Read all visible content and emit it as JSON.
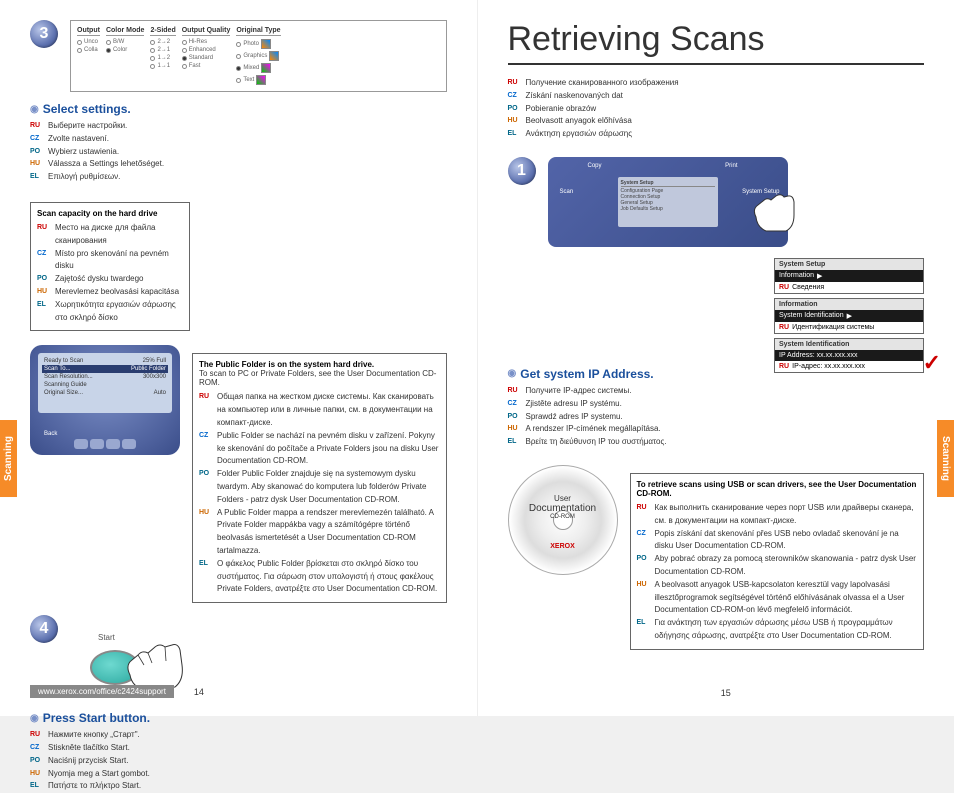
{
  "page_left": {
    "step3": "3",
    "step4": "4",
    "select_settings_heading": "Select settings.",
    "select_settings_ml": {
      "RU": "Выберите настройки.",
      "CZ": "Zvolte nastavení.",
      "PO": "Wybierz ustawienia.",
      "HU": "Válassza a Settings lehetőséget.",
      "EL": "Επιλογή ρυθμίσεων."
    },
    "panel": {
      "cols": [
        {
          "header": "Output",
          "opts": [
            "Unco",
            "Colla"
          ]
        },
        {
          "header": "Color Mode",
          "opts": [
            "B/W",
            "Color"
          ]
        },
        {
          "header": "2-Sided",
          "opts": [
            "2→2",
            "2→1",
            "1→2",
            "1→1"
          ]
        },
        {
          "header": "Output Quality",
          "opts": [
            "Hi-Res",
            "Enhanced",
            "Standard",
            "Fast"
          ]
        },
        {
          "header": "Original Type",
          "opts": [
            "Photo",
            "Graphics",
            "Mixed",
            "Text"
          ]
        }
      ]
    },
    "scan_capacity": {
      "heading": "Scan capacity on the hard drive",
      "ml": {
        "RU": "Место на диске для файла сканирования",
        "CZ": "Místo pro skenování na pevném disku",
        "PO": "Zajętość dysku twardego",
        "HU": "Merevlemez beolvasási kapacitása",
        "EL": "Χωρητικότητα εργασιών σάρωσης στο σκληρό δίσκο"
      }
    },
    "lcd": {
      "ready": "Ready to Scan",
      "pct": "25% Full",
      "rows": [
        [
          "Scan To...",
          "Public Folder"
        ],
        [
          "Scan Resolution...",
          "300x300"
        ],
        [
          "Scanning Guide",
          ""
        ],
        [
          "Original Size...",
          "Auto"
        ]
      ],
      "back": "Back"
    },
    "public_folder": {
      "heading": "The Public Folder is on the system hard drive.",
      "sub": "To scan to PC or Private Folders, see the User Documentation CD-ROM.",
      "ml": {
        "RU": "Общая папка на жестком диске системы. Как сканировать на компьютер или в личные папки, см. в документации на компакт-диске.",
        "CZ": "Public Folder se nachází na pevném disku v zařízení. Pokyny ke skenování do počítače a Private Folders jsou na disku User Documentation CD-ROM.",
        "PO": "Folder Public Folder znajduje się na systemowym dysku twardym. Aby skanować do komputera lub folderów Private Folders - patrz dysk User Documentation CD-ROM.",
        "HU": "A Public Folder mappa a rendszer merevlemezén található. A Private Folder mappákba vagy a számítógépre történő beolvasás ismertetését a User Documentation CD-ROM tartalmazza.",
        "EL": "Ο φάκελος Public Folder βρίσκεται στο σκληρό δίσκο του συστήματος. Για σάρωση στον υπολογιστή ή στους φακέλους Private Folders, ανατρέξτε στο User Documentation CD-ROM."
      }
    },
    "start_label": "Start",
    "press_start_heading": "Press Start button.",
    "press_start_ml": {
      "RU": "Нажмите кнопку „Старт\".",
      "CZ": "Stiskněte tlačítko Start.",
      "PO": "Naciśnij przycisk Start.",
      "HU": "Nyomja meg a Start gombot.",
      "EL": "Πατήστε το πλήκτρο Start."
    },
    "footer_url": "www.xerox.com/office/c2424support",
    "page_num": "14",
    "side_tab": "Scanning"
  },
  "page_right": {
    "title": "Retrieving Scans",
    "title_ml": {
      "RU": "Получение сканированного изображения",
      "CZ": "Získání naskenovaných dat",
      "PO": "Pobieranie obrazów",
      "HU": "Beolvasott anyagok előhívása",
      "EL": "Ανάκτηση εργασιών σάρωσης"
    },
    "step1": "1",
    "device_labels": {
      "copy": "Copy",
      "scan": "Scan",
      "print": "Print",
      "sys": "System Setup"
    },
    "device_screen": {
      "header": "System Setup",
      "rows": [
        "Configuration Page",
        "Connection Setup",
        "General Setup",
        "Job Defaults Setup"
      ]
    },
    "popouts": [
      {
        "header": "System Setup",
        "sel": "Information",
        "arrow": "▶",
        "ru": "Сведения"
      },
      {
        "header": "Information",
        "sel": "System Identification",
        "arrow": "▶",
        "ru": "Идентификация системы"
      },
      {
        "header": "System Identification",
        "sel": "IP Address: xx.xx.xxx.xxx",
        "ru": "IP-адрес: xx.xx.xxx.xxx",
        "check": true
      }
    ],
    "get_ip_heading": "Get system IP Address.",
    "get_ip_ml": {
      "RU": "Получите IP-адрес системы.",
      "CZ": "Zjistěte adresu IP systému.",
      "PO": "Sprawdź adres IP systemu.",
      "HU": "A rendszer IP-címének megállapítása.",
      "EL": "Βρείτε τη διεύθυνση IP του συστήματος."
    },
    "cd": {
      "line1": "User",
      "line2": "Documentation",
      "line3": "CD-ROM",
      "brand": "XEROX"
    },
    "retrieve_box": {
      "heading": "To retrieve scans using USB or scan drivers, see the User Documentation CD-ROM.",
      "ml": {
        "RU": "Как выполнить сканирование через порт USB или драйверы сканера, см. в документации на компакт-диске.",
        "CZ": "Popis získání dat skenování přes USB nebo ovladač skenování je na disku User Documentation CD-ROM.",
        "PO": "Aby pobrać obrazy za pomocą sterowników skanowania - patrz dysk User Documentation CD-ROM.",
        "HU": "A beolvasott anyagok USB-kapcsolaton keresztül vagy lapolvasási illesztőprogramok segítségével történő előhívásának olvassa el a User Documentation CD-ROM-on lévő megfelelő információt.",
        "EL": "Για ανάκτηση των εργασιών σάρωσης μέσω USB ή προγραμμάτων οδήγησης σάρωσης, ανατρέξτε στο User Documentation CD-ROM."
      }
    },
    "page_num": "15",
    "side_tab": "Scanning"
  },
  "colors": {
    "accent_blue": "#1a4f9c",
    "badge_grad_a": "#b8c5e8",
    "badge_grad_b": "#3e5290",
    "orange_tab": "#f68b28"
  }
}
